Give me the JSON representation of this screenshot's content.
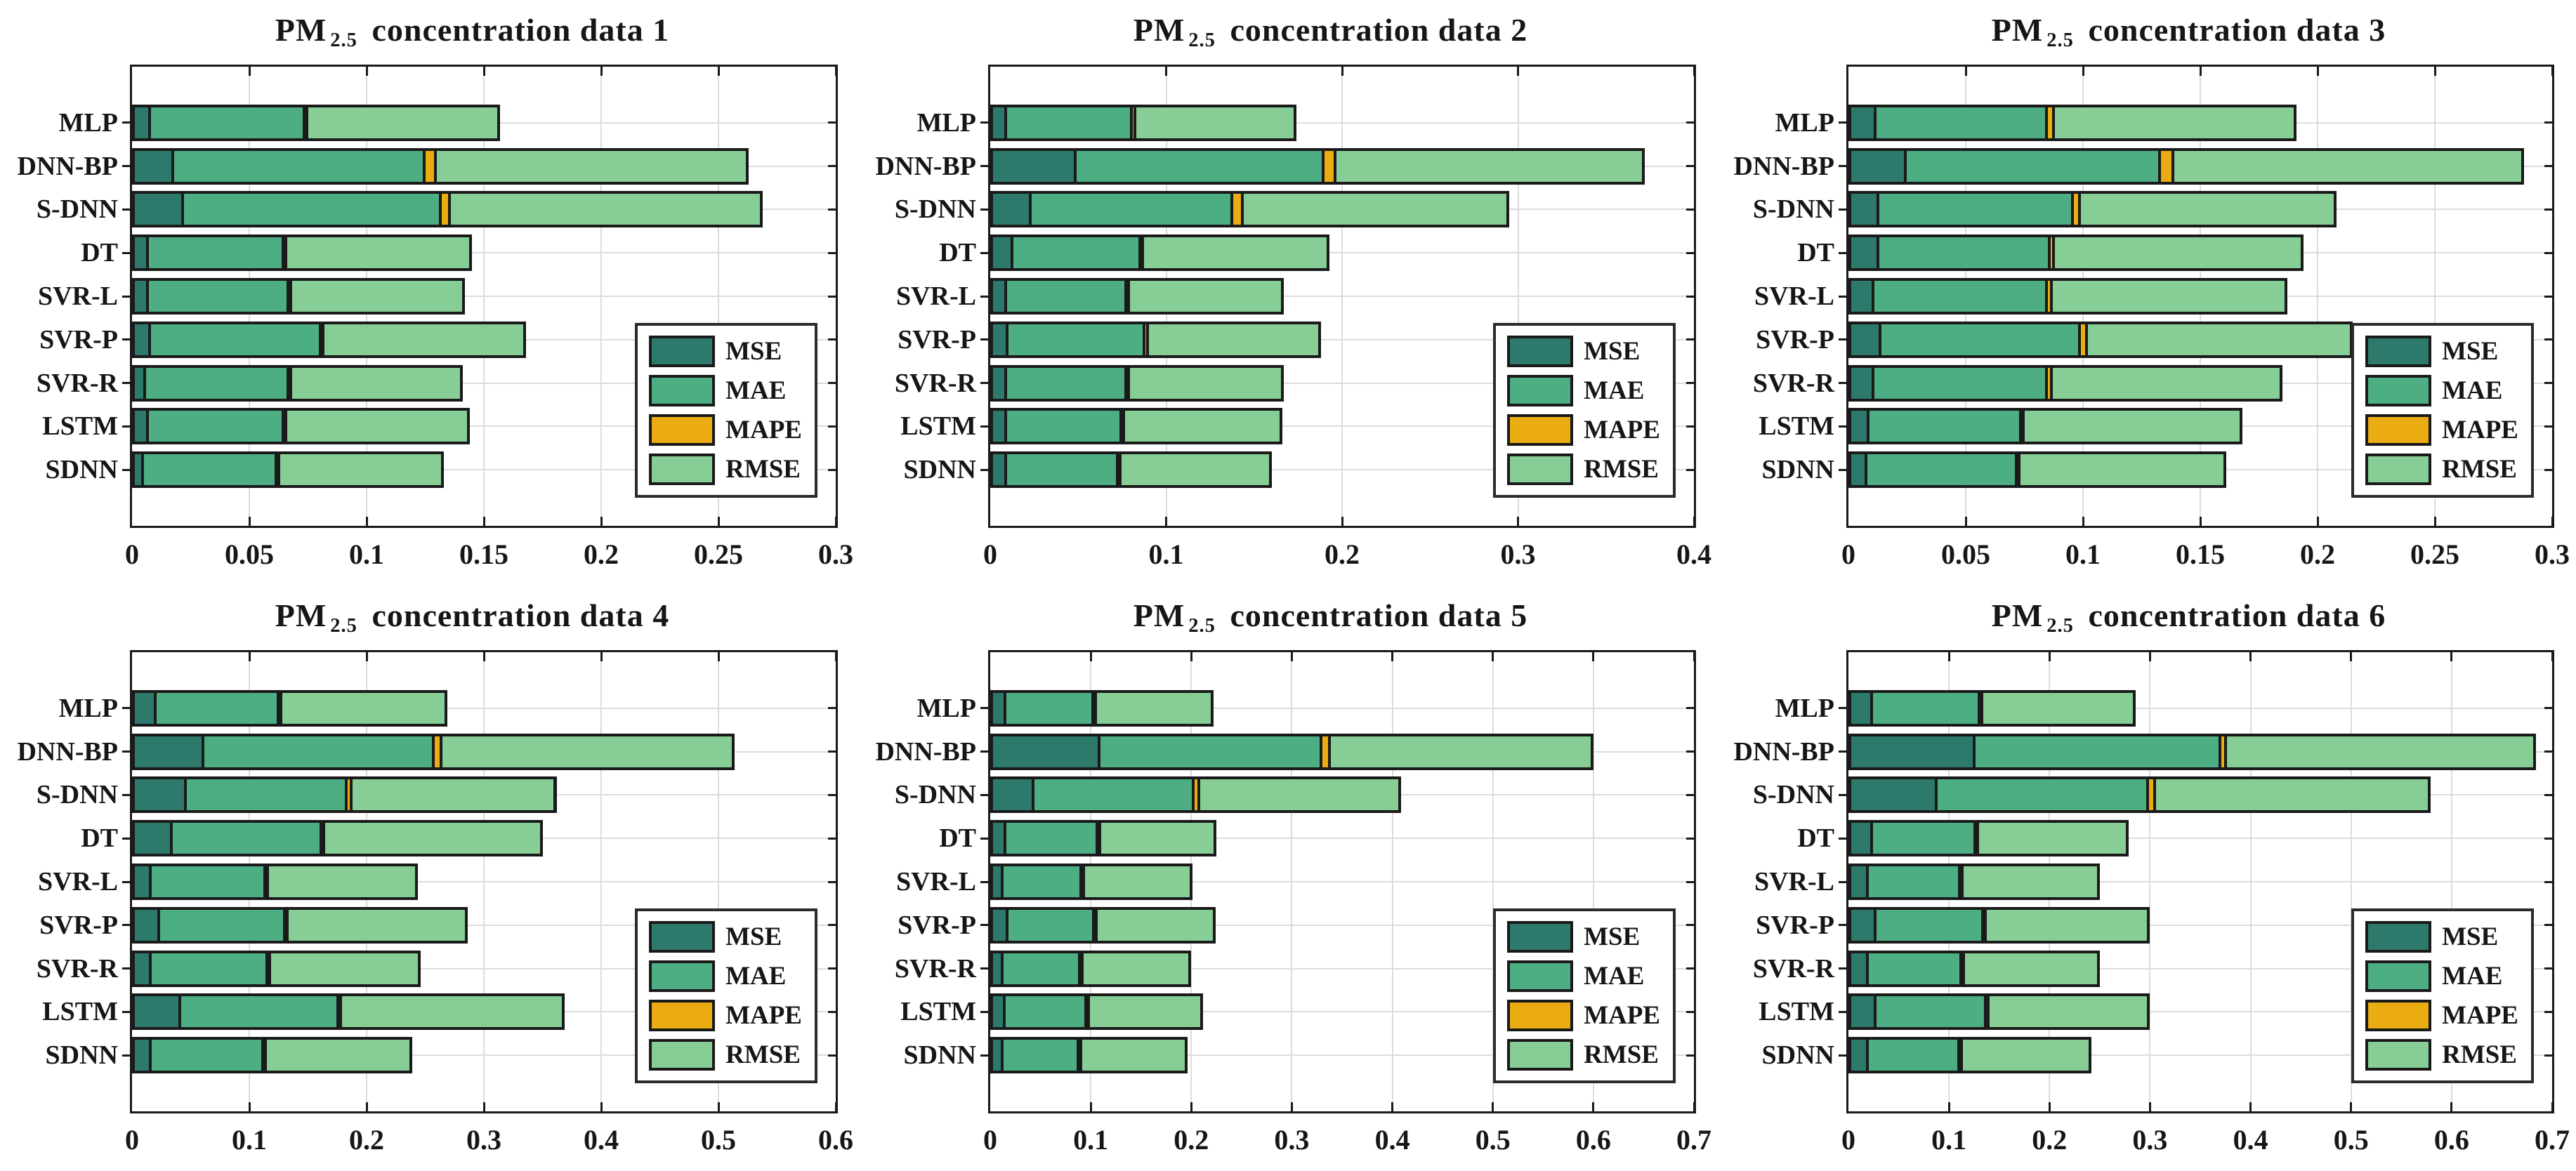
{
  "figure": {
    "legend_labels": [
      "MSE",
      "MAE",
      "MAPE",
      "RMSE"
    ],
    "colors": {
      "MSE": "#2d7a6c",
      "MAE": "#4dae84",
      "MAPE": "#eaac12",
      "RMSE": "#87cd96",
      "bar_edge": "#1a1a1a",
      "grid": "#dcdcdc",
      "axis": "#1a1a1a",
      "background": "#ffffff"
    }
  },
  "chart_data": [
    {
      "type": "bar",
      "orientation": "horizontal",
      "stacked": true,
      "title": "PM 2.5 concentration data 1",
      "title_parts": {
        "prefix": "PM",
        "sub": "2.5",
        "rest": "concentration data 1"
      },
      "categories": [
        "MLP",
        "DNN-BP",
        "S-DNN",
        "DT",
        "SVR-L",
        "SVR-P",
        "SVR-R",
        "LSTM",
        "SDNN"
      ],
      "series": [
        {
          "name": "MSE",
          "values": [
            0.007,
            0.017,
            0.021,
            0.006,
            0.006,
            0.007,
            0.005,
            0.006,
            0.004
          ]
        },
        {
          "name": "MAE",
          "values": [
            0.067,
            0.108,
            0.111,
            0.059,
            0.061,
            0.074,
            0.062,
            0.059,
            0.058
          ]
        },
        {
          "name": "MAPE",
          "values": [
            0.001,
            0.005,
            0.004,
            0.001,
            0.001,
            0.001,
            0.001,
            0.001,
            0.001
          ]
        },
        {
          "name": "RMSE",
          "values": [
            0.082,
            0.133,
            0.133,
            0.079,
            0.074,
            0.086,
            0.073,
            0.078,
            0.07
          ]
        }
      ],
      "xlim": [
        0,
        0.3
      ],
      "xticks": [
        0,
        0.05,
        0.1,
        0.15,
        0.2,
        0.25,
        0.3
      ],
      "xtick_labels": [
        "0",
        "0.05",
        "0.1",
        "0.15",
        "0.2",
        "0.25",
        "0.3"
      ],
      "grid": true,
      "legend_position": "lower right"
    },
    {
      "type": "bar",
      "orientation": "horizontal",
      "stacked": true,
      "title": "PM 2.5 concentration data 2",
      "title_parts": {
        "prefix": "PM",
        "sub": "2.5",
        "rest": "concentration data 2"
      },
      "categories": [
        "MLP",
        "DNN-BP",
        "S-DNN",
        "DT",
        "SVR-L",
        "SVR-P",
        "SVR-R",
        "LSTM",
        "SDNN"
      ],
      "series": [
        {
          "name": "MSE",
          "values": [
            0.008,
            0.048,
            0.022,
            0.012,
            0.008,
            0.009,
            0.008,
            0.008,
            0.008
          ]
        },
        {
          "name": "MAE",
          "values": [
            0.073,
            0.142,
            0.116,
            0.074,
            0.07,
            0.079,
            0.07,
            0.067,
            0.065
          ]
        },
        {
          "name": "MAPE",
          "values": [
            0.002,
            0.007,
            0.006,
            0.001,
            0.001,
            0.002,
            0.001,
            0.001,
            0.001
          ]
        },
        {
          "name": "RMSE",
          "values": [
            0.091,
            0.175,
            0.151,
            0.106,
            0.088,
            0.098,
            0.088,
            0.09,
            0.086
          ]
        }
      ],
      "xlim": [
        0,
        0.4
      ],
      "xticks": [
        0,
        0.1,
        0.2,
        0.3,
        0.4
      ],
      "xtick_labels": [
        "0",
        "0.1",
        "0.2",
        "0.3",
        "0.4"
      ],
      "grid": true,
      "legend_position": "lower right"
    },
    {
      "type": "bar",
      "orientation": "horizontal",
      "stacked": true,
      "title": "PM 2.5 concentration data 3",
      "title_parts": {
        "prefix": "PM",
        "sub": "2.5",
        "rest": "concentration data 3"
      },
      "categories": [
        "MLP",
        "DNN-BP",
        "S-DNN",
        "DT",
        "SVR-L",
        "SVR-P",
        "SVR-R",
        "LSTM",
        "SDNN"
      ],
      "series": [
        {
          "name": "MSE",
          "values": [
            0.011,
            0.024,
            0.012,
            0.012,
            0.01,
            0.013,
            0.01,
            0.008,
            0.007
          ]
        },
        {
          "name": "MAE",
          "values": [
            0.074,
            0.109,
            0.084,
            0.074,
            0.075,
            0.086,
            0.075,
            0.066,
            0.065
          ]
        },
        {
          "name": "MAPE",
          "values": [
            0.003,
            0.006,
            0.003,
            0.002,
            0.002,
            0.003,
            0.002,
            0.001,
            0.001
          ]
        },
        {
          "name": "RMSE",
          "values": [
            0.103,
            0.149,
            0.109,
            0.106,
            0.1,
            0.113,
            0.098,
            0.093,
            0.088
          ]
        }
      ],
      "xlim": [
        0,
        0.3
      ],
      "xticks": [
        0,
        0.05,
        0.1,
        0.15,
        0.2,
        0.25,
        0.3
      ],
      "xtick_labels": [
        "0",
        "0.05",
        "0.1",
        "0.15",
        "0.2",
        "0.25",
        "0.3"
      ],
      "grid": true,
      "legend_position": "lower right"
    },
    {
      "type": "bar",
      "orientation": "horizontal",
      "stacked": true,
      "title": "PM 2.5 concentration data 4",
      "title_parts": {
        "prefix": "PM",
        "sub": "2.5",
        "rest": "concentration data 4"
      },
      "categories": [
        "MLP",
        "DNN-BP",
        "S-DNN",
        "DT",
        "SVR-L",
        "SVR-P",
        "SVR-R",
        "LSTM",
        "SDNN"
      ],
      "series": [
        {
          "name": "MSE",
          "values": [
            0.019,
            0.06,
            0.045,
            0.033,
            0.015,
            0.022,
            0.015,
            0.04,
            0.015
          ]
        },
        {
          "name": "MAE",
          "values": [
            0.107,
            0.198,
            0.139,
            0.13,
            0.1,
            0.109,
            0.102,
            0.137,
            0.098
          ]
        },
        {
          "name": "MAPE",
          "values": [
            0.001,
            0.007,
            0.004,
            0.001,
            0.001,
            0.002,
            0.001,
            0.001,
            0.001
          ]
        },
        {
          "name": "RMSE",
          "values": [
            0.142,
            0.249,
            0.174,
            0.186,
            0.128,
            0.153,
            0.128,
            0.191,
            0.125
          ]
        }
      ],
      "xlim": [
        0,
        0.6
      ],
      "xticks": [
        0,
        0.1,
        0.2,
        0.3,
        0.4,
        0.5,
        0.6
      ],
      "xtick_labels": [
        "0",
        "0.1",
        "0.2",
        "0.3",
        "0.4",
        "0.5",
        "0.6"
      ],
      "grid": true,
      "legend_position": "lower right"
    },
    {
      "type": "bar",
      "orientation": "horizontal",
      "stacked": true,
      "title": "PM 2.5 concentration data 5",
      "title_parts": {
        "prefix": "PM",
        "sub": "2.5",
        "rest": "concentration data 5"
      },
      "categories": [
        "MLP",
        "DNN-BP",
        "S-DNN",
        "DT",
        "SVR-L",
        "SVR-P",
        "SVR-R",
        "LSTM",
        "SDNN"
      ],
      "series": [
        {
          "name": "MSE",
          "values": [
            0.014,
            0.108,
            0.042,
            0.014,
            0.011,
            0.016,
            0.011,
            0.013,
            0.011
          ]
        },
        {
          "name": "MAE",
          "values": [
            0.09,
            0.223,
            0.161,
            0.094,
            0.081,
            0.089,
            0.08,
            0.084,
            0.078
          ]
        },
        {
          "name": "MAPE",
          "values": [
            0.001,
            0.008,
            0.006,
            0.001,
            0.001,
            0.001,
            0.001,
            0.001,
            0.001
          ]
        },
        {
          "name": "RMSE",
          "values": [
            0.117,
            0.261,
            0.2,
            0.116,
            0.108,
            0.118,
            0.108,
            0.114,
            0.106
          ]
        }
      ],
      "xlim": [
        0,
        0.7
      ],
      "xticks": [
        0,
        0.1,
        0.2,
        0.3,
        0.4,
        0.5,
        0.6,
        0.7
      ],
      "xtick_labels": [
        "0",
        "0.1",
        "0.2",
        "0.3",
        "0.4",
        "0.5",
        "0.6",
        "0.7"
      ],
      "grid": true,
      "legend_position": "lower right"
    },
    {
      "type": "bar",
      "orientation": "horizontal",
      "stacked": true,
      "title": "PM 2.5 concentration data 6",
      "title_parts": {
        "prefix": "PM",
        "sub": "2.5",
        "rest": "concentration data 6"
      },
      "categories": [
        "MLP",
        "DNN-BP",
        "S-DNN",
        "DT",
        "SVR-L",
        "SVR-P",
        "SVR-R",
        "LSTM",
        "SDNN"
      ],
      "series": [
        {
          "name": "MSE",
          "values": [
            0.022,
            0.125,
            0.087,
            0.022,
            0.018,
            0.026,
            0.018,
            0.026,
            0.018
          ]
        },
        {
          "name": "MAE",
          "values": [
            0.11,
            0.246,
            0.212,
            0.106,
            0.094,
            0.109,
            0.096,
            0.112,
            0.094
          ]
        },
        {
          "name": "MAPE",
          "values": [
            0.001,
            0.006,
            0.007,
            0.001,
            0.001,
            0.002,
            0.001,
            0.001,
            0.001
          ]
        },
        {
          "name": "RMSE",
          "values": [
            0.153,
            0.307,
            0.273,
            0.15,
            0.137,
            0.163,
            0.135,
            0.161,
            0.129
          ]
        }
      ],
      "xlim": [
        0,
        0.7
      ],
      "xticks": [
        0,
        0.1,
        0.2,
        0.3,
        0.4,
        0.5,
        0.6,
        0.7
      ],
      "xtick_labels": [
        "0",
        "0.1",
        "0.2",
        "0.3",
        "0.4",
        "0.5",
        "0.6",
        "0.7"
      ],
      "grid": true,
      "legend_position": "lower right"
    }
  ]
}
